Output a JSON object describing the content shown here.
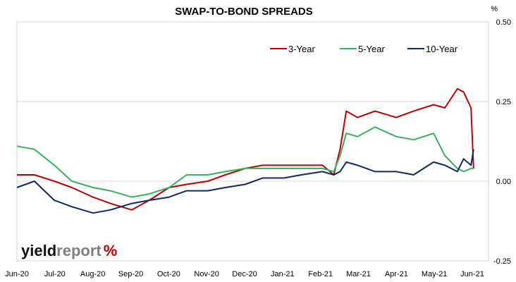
{
  "chart_data": {
    "type": "line",
    "title": "SWAP-TO-BOND SPREADS",
    "ylabel": "%",
    "ylim": [
      -0.25,
      0.5
    ],
    "yticks": [
      "0.50",
      "0.25",
      "0.00",
      "-0.25"
    ],
    "yticks_values": [
      0.5,
      0.25,
      0.0,
      -0.25
    ],
    "grid": "horizontal",
    "legend_position": "top-right",
    "x_tick_labels": [
      "Jun-20",
      "Jul-20",
      "Aug-20",
      "Sep-20",
      "Oct-20",
      "Nov-20",
      "Dec-20",
      "Jan-21",
      "Feb-21",
      "Mar-21",
      "Apr-21",
      "May-21",
      "Jun-21"
    ],
    "x": [
      "2020-06-01",
      "2020-06-15",
      "2020-07-01",
      "2020-07-15",
      "2020-08-01",
      "2020-08-15",
      "2020-09-01",
      "2020-09-15",
      "2020-10-01",
      "2020-10-15",
      "2020-11-01",
      "2020-11-15",
      "2020-12-01",
      "2020-12-15",
      "2021-01-01",
      "2021-01-15",
      "2021-02-01",
      "2021-02-10",
      "2021-02-15",
      "2021-02-20",
      "2021-03-01",
      "2021-03-15",
      "2021-04-01",
      "2021-04-15",
      "2021-05-01",
      "2021-05-10",
      "2021-05-20",
      "2021-05-25",
      "2021-05-31",
      "2021-06-02"
    ],
    "series": [
      {
        "name": "3-Year",
        "color": "#c00000",
        "values": [
          0.02,
          0.02,
          0.0,
          -0.02,
          -0.05,
          -0.07,
          -0.09,
          -0.06,
          -0.02,
          -0.01,
          0.0,
          0.02,
          0.04,
          0.05,
          0.05,
          0.05,
          0.05,
          0.02,
          0.1,
          0.22,
          0.2,
          0.22,
          0.2,
          0.22,
          0.24,
          0.23,
          0.29,
          0.28,
          0.23,
          0.04
        ]
      },
      {
        "name": "5-Year",
        "color": "#33b35a",
        "values": [
          0.11,
          0.1,
          0.05,
          0.0,
          -0.02,
          -0.03,
          -0.05,
          -0.04,
          -0.02,
          0.02,
          0.02,
          0.03,
          0.04,
          0.04,
          0.04,
          0.04,
          0.04,
          0.03,
          0.08,
          0.15,
          0.14,
          0.17,
          0.14,
          0.13,
          0.15,
          0.08,
          0.04,
          0.03,
          0.04,
          0.04
        ]
      },
      {
        "name": "10-Year",
        "color": "#0b2a6b",
        "values": [
          -0.02,
          0.0,
          -0.06,
          -0.08,
          -0.1,
          -0.09,
          -0.07,
          -0.06,
          -0.05,
          -0.03,
          -0.03,
          -0.02,
          -0.01,
          0.01,
          0.01,
          0.02,
          0.03,
          0.02,
          0.03,
          0.06,
          0.05,
          0.03,
          0.03,
          0.02,
          0.06,
          0.05,
          0.03,
          0.07,
          0.05,
          0.1
        ]
      }
    ]
  },
  "logo": {
    "part1": "yield",
    "part2": "report",
    "part3": "%"
  }
}
